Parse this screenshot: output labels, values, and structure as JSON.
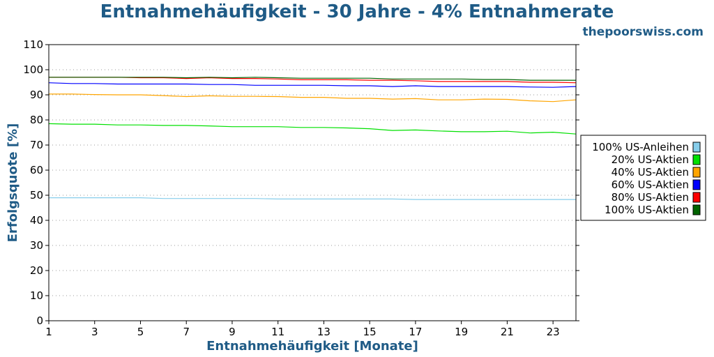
{
  "chart_data": {
    "type": "line",
    "title": "Entnahmehäufigkeit - 30 Jahre - 4% Entnahmerate",
    "subtitle": "thepoorswiss.com",
    "xlabel": "Entnahmehäufigkeit [Monate]",
    "ylabel": "Erfolgsquote [%]",
    "xlim": [
      1,
      24
    ],
    "ylim": [
      0,
      110
    ],
    "x_ticks": [
      1,
      3,
      5,
      7,
      9,
      11,
      13,
      15,
      17,
      19,
      21,
      23
    ],
    "y_ticks": [
      0,
      10,
      20,
      30,
      40,
      50,
      60,
      70,
      80,
      90,
      100,
      110
    ],
    "grid": true,
    "legend_position": "right",
    "x": [
      1,
      2,
      3,
      4,
      5,
      6,
      7,
      8,
      9,
      10,
      11,
      12,
      13,
      14,
      15,
      16,
      17,
      18,
      19,
      20,
      21,
      22,
      23,
      24
    ],
    "series": [
      {
        "name": "100% US-Anleihen",
        "color": "#87ceeb",
        "values": [
          49.0,
          49.0,
          49.0,
          49.0,
          49.0,
          48.7,
          48.7,
          48.7,
          48.7,
          48.7,
          48.5,
          48.5,
          48.5,
          48.5,
          48.5,
          48.5,
          48.3,
          48.3,
          48.3,
          48.3,
          48.3,
          48.3,
          48.3,
          48.3
        ]
      },
      {
        "name": "20% US-Aktien",
        "color": "#00e000",
        "values": [
          78.5,
          78.3,
          78.3,
          78.0,
          78.0,
          77.8,
          77.8,
          77.6,
          77.3,
          77.3,
          77.3,
          77.0,
          77.0,
          76.8,
          76.5,
          75.8,
          76.0,
          75.6,
          75.3,
          75.3,
          75.5,
          74.8,
          75.1,
          74.4
        ]
      },
      {
        "name": "40% US-Aktien",
        "color": "#ffa500",
        "values": [
          90.3,
          90.3,
          90.1,
          90.0,
          90.0,
          89.7,
          89.3,
          89.6,
          89.4,
          89.4,
          89.3,
          89.0,
          89.0,
          88.6,
          88.6,
          88.3,
          88.5,
          88.0,
          88.0,
          88.3,
          88.2,
          87.6,
          87.3,
          88.0
        ]
      },
      {
        "name": "60% US-Aktien",
        "color": "#0000ff",
        "values": [
          94.8,
          94.5,
          94.5,
          94.3,
          94.3,
          94.3,
          94.3,
          94.1,
          94.1,
          93.8,
          93.8,
          93.8,
          93.8,
          93.6,
          93.6,
          93.3,
          93.6,
          93.3,
          93.3,
          93.3,
          93.3,
          93.1,
          93.0,
          93.3
        ]
      },
      {
        "name": "80% US-Aktien",
        "color": "#ff0000",
        "values": [
          97.0,
          97.0,
          97.0,
          97.0,
          96.8,
          96.8,
          96.5,
          96.8,
          96.5,
          96.5,
          96.3,
          96.0,
          96.0,
          96.0,
          95.8,
          95.8,
          95.6,
          95.3,
          95.3,
          95.3,
          95.3,
          95.0,
          95.0,
          94.8
        ]
      },
      {
        "name": "100% US-Aktien",
        "color": "#006400",
        "values": [
          97.0,
          97.0,
          97.0,
          97.0,
          97.0,
          97.0,
          96.8,
          97.0,
          96.8,
          97.0,
          96.8,
          96.6,
          96.6,
          96.6,
          96.6,
          96.3,
          96.3,
          96.3,
          96.3,
          96.1,
          96.1,
          95.8,
          95.8,
          95.8
        ]
      }
    ]
  }
}
